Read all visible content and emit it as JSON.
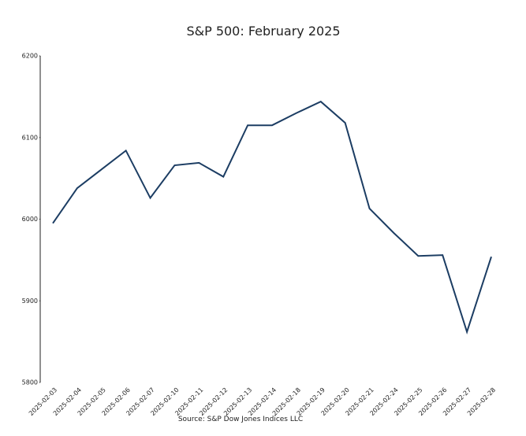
{
  "chart_data": {
    "type": "line",
    "title": "S&P 500: February 2025",
    "source": "Source: S&P Dow Jones Indices LLC",
    "x": [
      "2025-02-03",
      "2025-02-04",
      "2025-02-05",
      "2025-02-06",
      "2025-02-07",
      "2025-02-10",
      "2025-02-11",
      "2025-02-12",
      "2025-02-13",
      "2025-02-14",
      "2025-02-18",
      "2025-02-19",
      "2025-02-20",
      "2025-02-21",
      "2025-02-24",
      "2025-02-25",
      "2025-02-26",
      "2025-02-27",
      "2025-02-28"
    ],
    "values": [
      5995,
      6038,
      6061,
      6084,
      6026,
      6066,
      6069,
      6052,
      6115,
      6115,
      6130,
      6144,
      6118,
      6013,
      5983,
      5955,
      5956,
      5862,
      5954
    ],
    "color": "#1c3d63",
    "ylim": [
      5800,
      6200
    ],
    "yticks": [
      5800,
      5900,
      6000,
      6100,
      6200
    ],
    "grid": false
  }
}
